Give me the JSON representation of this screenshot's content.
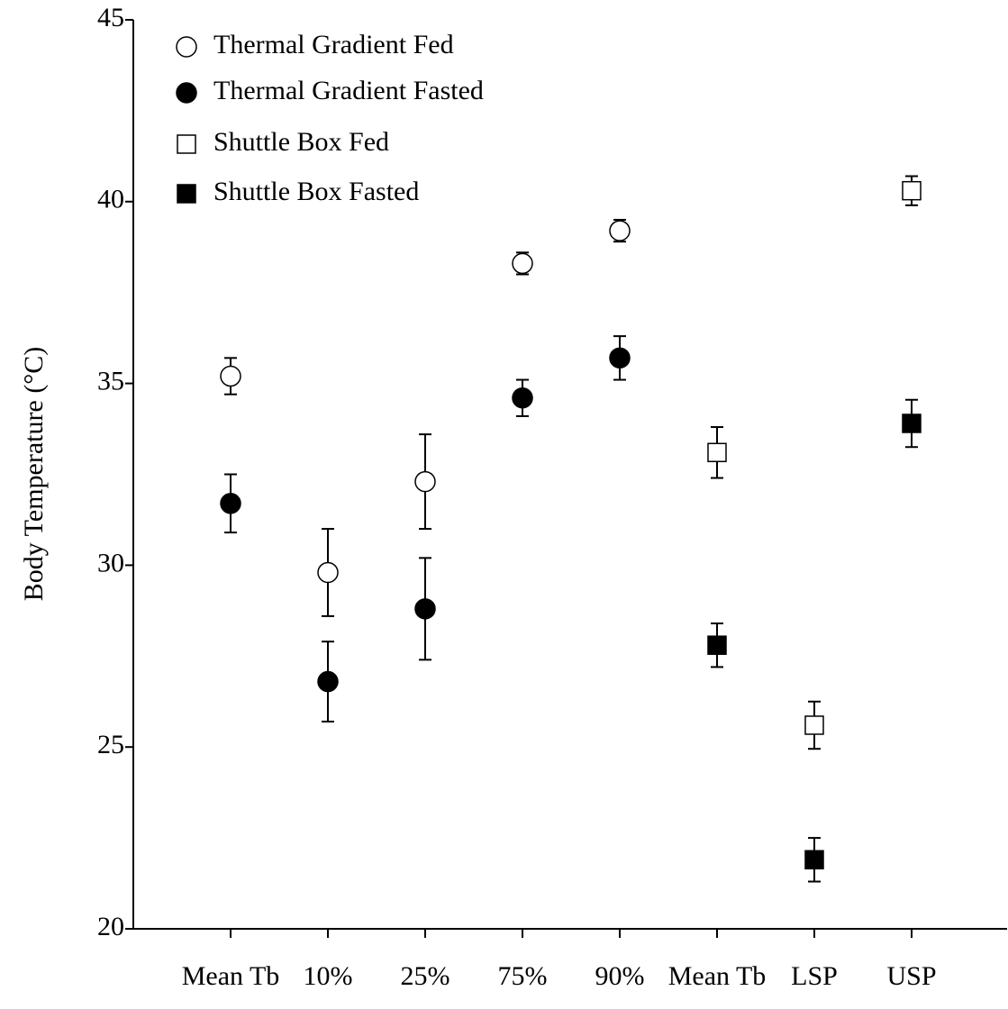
{
  "chart_data": {
    "type": "errorbar-scatter",
    "ylabel": "Body Temperature (°C)",
    "categories": [
      "Mean Tb",
      "10%",
      "25%",
      "75%",
      "90%",
      "Mean Tb",
      "LSP",
      "USP"
    ],
    "ylim": [
      20,
      45
    ],
    "yticks": [
      20,
      25,
      30,
      35,
      40,
      45
    ],
    "legend": "top-left",
    "series": [
      {
        "name": "Thermal Gradient Fed",
        "color": "#000000",
        "marker": "circle",
        "filled": false,
        "values": [
          35.2,
          29.8,
          32.3,
          38.3,
          39.2,
          null,
          null,
          null
        ],
        "errors": [
          0.5,
          1.2,
          1.3,
          0.3,
          0.3,
          null,
          null,
          null
        ]
      },
      {
        "name": "Thermal Gradient Fasted",
        "color": "#000000",
        "marker": "circle",
        "filled": true,
        "values": [
          31.7,
          26.8,
          28.8,
          34.6,
          35.7,
          null,
          null,
          null
        ],
        "errors": [
          0.8,
          1.1,
          1.4,
          0.5,
          0.6,
          null,
          null,
          null
        ]
      },
      {
        "name": "Shuttle Box Fed",
        "color": "#000000",
        "marker": "square",
        "filled": false,
        "values": [
          null,
          null,
          null,
          null,
          null,
          33.1,
          25.6,
          40.3
        ],
        "errors": [
          null,
          null,
          null,
          null,
          null,
          0.7,
          0.65,
          0.4
        ]
      },
      {
        "name": "Shuttle Box Fasted",
        "color": "#000000",
        "marker": "square",
        "filled": true,
        "values": [
          null,
          null,
          null,
          null,
          null,
          27.8,
          21.9,
          33.9
        ],
        "errors": [
          null,
          null,
          null,
          null,
          null,
          0.6,
          0.6,
          0.65
        ]
      }
    ]
  }
}
